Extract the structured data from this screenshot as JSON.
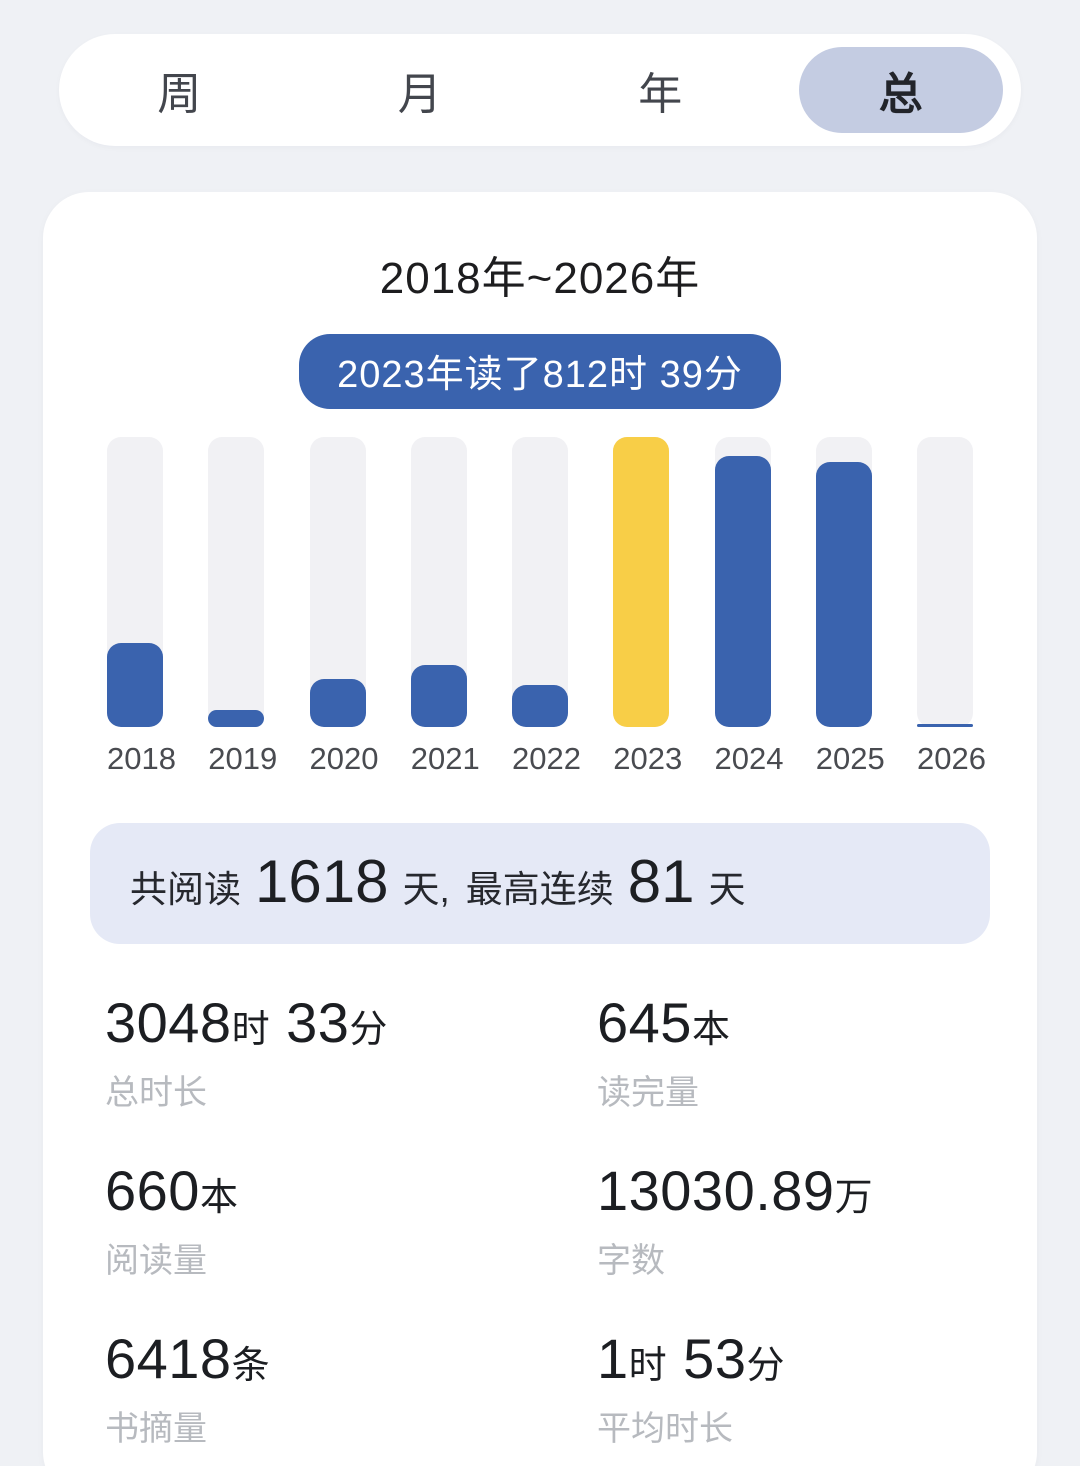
{
  "tabs": {
    "items": [
      {
        "label": "周",
        "selected": false
      },
      {
        "label": "月",
        "selected": false
      },
      {
        "label": "年",
        "selected": false
      },
      {
        "label": "总",
        "selected": true
      }
    ]
  },
  "card": {
    "title": "2018年~2026年",
    "badge": "2023年读了812时 39分",
    "summary": {
      "t1": "共阅读",
      "n1": "1618",
      "t2": "天,",
      "t3": "最高连续",
      "n2": "81",
      "t4": "天"
    },
    "stats": [
      {
        "b1": "3048",
        "s1": "时",
        "b2": "33",
        "s2": "分",
        "label": "总时长"
      },
      {
        "b1": "645",
        "s1": "本",
        "b2": "",
        "s2": "",
        "label": "读完量"
      },
      {
        "b1": "660",
        "s1": "本",
        "b2": "",
        "s2": "",
        "label": "阅读量"
      },
      {
        "b1": "13030.89",
        "s1": "万",
        "b2": "",
        "s2": "",
        "label": "字数"
      },
      {
        "b1": "6418",
        "s1": "条",
        "b2": "",
        "s2": "",
        "label": "书摘量"
      },
      {
        "b1": "1",
        "s1": "时",
        "b2": "53",
        "s2": "分",
        "label": "平均时长"
      }
    ]
  },
  "chart": {
    "bars": [
      {
        "label": "2018",
        "height_pct": 29,
        "color": "#3a63ae"
      },
      {
        "label": "2019",
        "height_pct": 6,
        "color": "#3a63ae"
      },
      {
        "label": "2020",
        "height_pct": 16.5,
        "color": "#3a63ae"
      },
      {
        "label": "2021",
        "height_pct": 21.5,
        "color": "#3a63ae"
      },
      {
        "label": "2022",
        "height_pct": 14.5,
        "color": "#3a63ae"
      },
      {
        "label": "2023",
        "height_pct": 100,
        "color": "#f8ce47"
      },
      {
        "label": "2024",
        "height_pct": 93.5,
        "color": "#3a63ae"
      },
      {
        "label": "2025",
        "height_pct": 91.5,
        "color": "#3a63ae"
      },
      {
        "label": "2026",
        "height_pct": 1,
        "color": "#3a63ae"
      }
    ]
  },
  "chart_data": {
    "type": "bar",
    "title": "2018年~2026年",
    "categories": [
      "2018",
      "2019",
      "2020",
      "2021",
      "2022",
      "2023",
      "2024",
      "2025",
      "2026"
    ],
    "values_pct_of_max": [
      29,
      6,
      16.5,
      21.5,
      14.5,
      100,
      93.5,
      91.5,
      1
    ],
    "annotated_point": {
      "category": "2023",
      "label": "2023年读了812时 39分",
      "value_hours": 812,
      "value_minutes": 39
    },
    "highlight_category": "2023",
    "highlight_color": "#f8ce47",
    "bar_color": "#3a63ae",
    "track_color": "#f1f1f4",
    "legend": "none",
    "grid": "off",
    "summary_totals": {
      "total_reading_days": 1618,
      "max_streak_days": 81,
      "total_duration": "3048时 33分",
      "books_finished": "645本",
      "books_read": "660本",
      "word_count": "13030.89万",
      "notes_count": "6418条",
      "avg_duration": "1时 53分"
    }
  },
  "colors": {
    "accent_blue": "#3a63ae",
    "highlight_yellow": "#f8ce47",
    "track_gray": "#f1f1f4",
    "tab_selected_pill": "#c4cce2",
    "summary_bg": "#e5e9f6",
    "page_bg": "#eff1f5"
  }
}
